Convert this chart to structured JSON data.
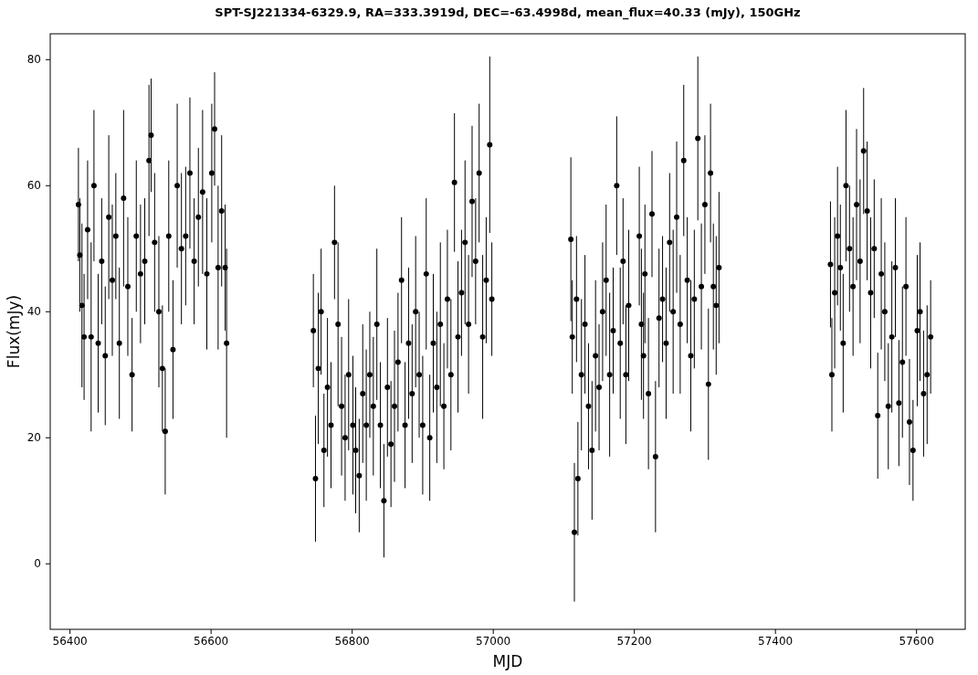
{
  "chart_data": {
    "type": "scatter",
    "title": "SPT-SJ221334-6329.9, RA=333.3919d, DEC=-63.4998d, mean_flux=40.33 (mJy), 150GHz",
    "xlabel": "MJD",
    "ylabel": "Flux(mJy)",
    "xlim": [
      56372,
      57669
    ],
    "ylim": [
      -10.4,
      84.1
    ],
    "xticks": [
      56400,
      56600,
      56800,
      57000,
      57200,
      57400,
      57600
    ],
    "yticks": [
      0,
      20,
      40,
      60,
      80
    ],
    "marker": "circle",
    "series": [
      {
        "color": "#000000",
        "x": [
          56412,
          56414,
          56417,
          56420,
          56425,
          56430,
          56434,
          56440,
          56445,
          56450,
          56455,
          56460,
          56465,
          56470,
          56476,
          56482,
          56488,
          56494,
          56500,
          56506,
          56512,
          56515,
          56520,
          56526,
          56531,
          56535,
          56540,
          56546,
          56552,
          56558,
          56564,
          56570,
          56576,
          56582,
          56588,
          56594,
          56601,
          56605,
          56610,
          56615,
          56620,
          56622,
          56745,
          56748,
          56752,
          56756,
          56760,
          56765,
          56770,
          56775,
          56780,
          56785,
          56790,
          56795,
          56801,
          56805,
          56810,
          56815,
          56820,
          56825,
          56830,
          56835,
          56840,
          56845,
          56850,
          56855,
          56860,
          56865,
          56870,
          56875,
          56880,
          56885,
          56890,
          56895,
          56900,
          56905,
          56910,
          56915,
          56920,
          56925,
          56930,
          56935,
          56940,
          56945,
          56950,
          56955,
          56960,
          56965,
          56970,
          56975,
          56980,
          56985,
          56990,
          56995,
          56998,
          57110,
          57112,
          57115,
          57118,
          57120,
          57125,
          57130,
          57135,
          57140,
          57145,
          57150,
          57155,
          57160,
          57165,
          57170,
          57175,
          57180,
          57184,
          57188,
          57192,
          57207,
          57210,
          57213,
          57215,
          57220,
          57225,
          57230,
          57235,
          57240,
          57245,
          57250,
          57255,
          57260,
          57265,
          57270,
          57275,
          57280,
          57285,
          57290,
          57295,
          57300,
          57305,
          57308,
          57312,
          57316,
          57320,
          57478,
          57480,
          57484,
          57488,
          57492,
          57496,
          57500,
          57505,
          57510,
          57515,
          57520,
          57525,
          57530,
          57535,
          57540,
          57545,
          57550,
          57555,
          57560,
          57565,
          57570,
          57575,
          57580,
          57585,
          57590,
          57595,
          57601,
          57605,
          57610,
          57615,
          57620
        ],
        "values": [
          57,
          49,
          41,
          36,
          53,
          36,
          60,
          35,
          48,
          33,
          55,
          45,
          52,
          35,
          58,
          44,
          30,
          52,
          46,
          48,
          64,
          68,
          51,
          40,
          31,
          21,
          52,
          34,
          60,
          50,
          52,
          62,
          48,
          55,
          59,
          46,
          62,
          69,
          47,
          56,
          47,
          35,
          37,
          13.5,
          31,
          40,
          18,
          28,
          22,
          51,
          38,
          25,
          20,
          30,
          22,
          18,
          14,
          27,
          22,
          30,
          25,
          38,
          22,
          10,
          28,
          19,
          25,
          32,
          45,
          22,
          35,
          27,
          40,
          30,
          22,
          46,
          20,
          35,
          28,
          38,
          25,
          42,
          30,
          60.5,
          36,
          43,
          51,
          38,
          57.5,
          48,
          62,
          36,
          45,
          66.5,
          42,
          51.5,
          36,
          5,
          42,
          13.5,
          30,
          38,
          25,
          18,
          33,
          28,
          40,
          45,
          30,
          37,
          60,
          35,
          48,
          30,
          41,
          52,
          38,
          33,
          46,
          27,
          55.5,
          17,
          39,
          42,
          35,
          51,
          40,
          55,
          38,
          64,
          45,
          33,
          42,
          67.5,
          44,
          57,
          28.5,
          62,
          44,
          41,
          47,
          47.5,
          30,
          43,
          52,
          47,
          35,
          60,
          50,
          44,
          57,
          48,
          65.5,
          56,
          43,
          50,
          23.5,
          46,
          40,
          25,
          36,
          47,
          25.5,
          32,
          44,
          22.5,
          18,
          37,
          40,
          27,
          30,
          36
        ],
        "errors": [
          9,
          9,
          13,
          10,
          11,
          15,
          12,
          11,
          10,
          11,
          13,
          12,
          10,
          12,
          14,
          11,
          9,
          12,
          11,
          10,
          12,
          9,
          11,
          12,
          10,
          10,
          12,
          11,
          13,
          12,
          11,
          12,
          10,
          11,
          13,
          12,
          11,
          9,
          13,
          12,
          10,
          15,
          9,
          10,
          12,
          10,
          9,
          11,
          10,
          9,
          13,
          11,
          10,
          12,
          11,
          10,
          9,
          11,
          12,
          10,
          11,
          12,
          10,
          9,
          11,
          10,
          12,
          11,
          10,
          10,
          12,
          11,
          12,
          10,
          11,
          12,
          10,
          11,
          12,
          13,
          10,
          11,
          12,
          11,
          12,
          10,
          13,
          11,
          12,
          10,
          11,
          13,
          10,
          14,
          9,
          13,
          9,
          11,
          10,
          9,
          12,
          11,
          10,
          11,
          12,
          10,
          11,
          12,
          13,
          10,
          11,
          12,
          10,
          11,
          12,
          11,
          12,
          10,
          11,
          12,
          10,
          12,
          11,
          10,
          12,
          11,
          13,
          12,
          11,
          12,
          10,
          12,
          11,
          13,
          10,
          11,
          12,
          11,
          10,
          11,
          12,
          10,
          9,
          12,
          11,
          10,
          11,
          12,
          10,
          11,
          12,
          13,
          10,
          11,
          12,
          11,
          10,
          12,
          11,
          10,
          12,
          11,
          10,
          12,
          11,
          10,
          8,
          12,
          11,
          10,
          11,
          9
        ]
      }
    ]
  }
}
